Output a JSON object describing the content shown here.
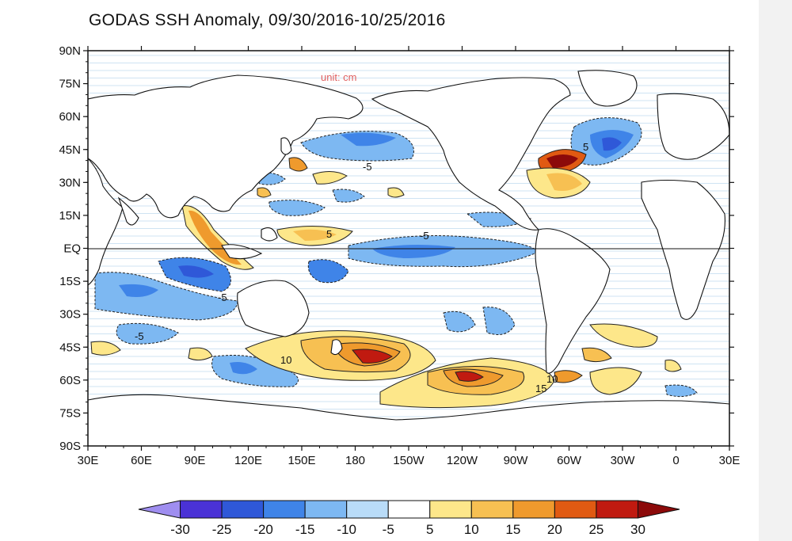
{
  "title": "GODAS SSH Anomaly, 09/30/2016-10/25/2016",
  "unit_label": "unit: cm",
  "y_ticks": [
    "90N",
    "75N",
    "60N",
    "45N",
    "30N",
    "15N",
    "EQ",
    "15S",
    "30S",
    "45S",
    "60S",
    "75S",
    "90S"
  ],
  "x_ticks": [
    "30E",
    "60E",
    "90E",
    "120E",
    "150E",
    "180",
    "150W",
    "120W",
    "90W",
    "60W",
    "30W",
    "0",
    "30E"
  ],
  "colorbar": {
    "labels": [
      "-30",
      "-25",
      "-20",
      "-15",
      "-10",
      "-5",
      "5",
      "10",
      "15",
      "20",
      "25",
      "30"
    ],
    "colors": [
      "#9f8ef0",
      "#4a32d6",
      "#2f58d8",
      "#3f84e8",
      "#7db8f2",
      "#b9dcf8",
      "#ffffff",
      "#fde78a",
      "#f7c052",
      "#ef9a2d",
      "#e05a12",
      "#c01a10",
      "#8c0a0a"
    ]
  },
  "contour_labels": [
    {
      "text": "-5"
    },
    {
      "text": "-5"
    },
    {
      "text": "-5"
    },
    {
      "text": "-5"
    },
    {
      "text": "5"
    },
    {
      "text": "10"
    },
    {
      "text": "10"
    },
    {
      "text": "15"
    },
    {
      "text": "5"
    }
  ]
}
